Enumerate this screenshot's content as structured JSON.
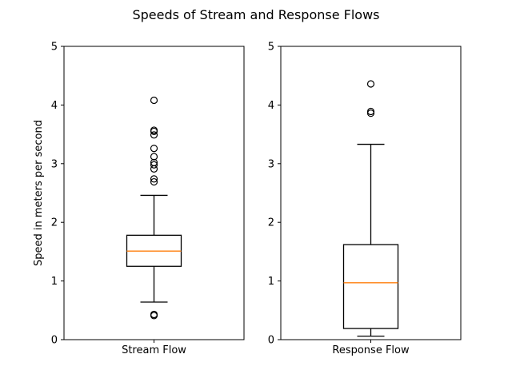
{
  "figure": {
    "title": "Speeds of Stream and Response Flows"
  },
  "chart_data": [
    {
      "type": "box",
      "title": "",
      "xlabel": "",
      "ylabel": "Speed in meters per second",
      "ylim": [
        0,
        5
      ],
      "yticks": [
        0,
        1,
        2,
        3,
        4,
        5
      ],
      "grid": false,
      "categories": [
        "Stream Flow"
      ],
      "box": {
        "whisker_low": 0.64,
        "q1": 1.25,
        "median": 1.51,
        "q3": 1.78,
        "whisker_high": 2.46,
        "outliers": [
          0.41,
          0.43,
          2.69,
          2.74,
          2.91,
          2.98,
          3.02,
          3.12,
          3.26,
          3.49,
          3.55,
          3.57,
          4.08
        ]
      },
      "colors": {
        "box": "#000000",
        "median": "#ff7f0e"
      }
    },
    {
      "type": "box",
      "title": "",
      "xlabel": "",
      "ylabel": "",
      "ylim": [
        0,
        5
      ],
      "yticks": [
        0,
        1,
        2,
        3,
        4,
        5
      ],
      "grid": false,
      "categories": [
        "Response Flow"
      ],
      "box": {
        "whisker_low": 0.06,
        "q1": 0.19,
        "median": 0.97,
        "q3": 1.62,
        "whisker_high": 3.33,
        "outliers": [
          3.86,
          3.89,
          4.36
        ]
      },
      "colors": {
        "box": "#000000",
        "median": "#ff7f0e"
      }
    }
  ]
}
